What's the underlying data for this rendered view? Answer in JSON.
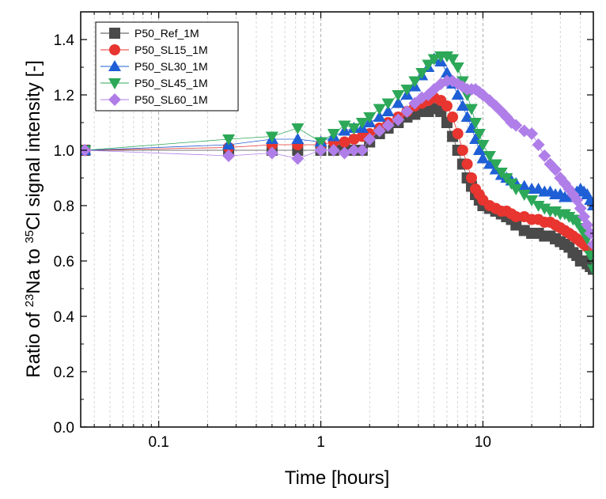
{
  "chart_data": {
    "type": "scatter",
    "xscale": "log",
    "xlabel": "Time [hours]",
    "ylabel_parts": [
      "Ratio of ",
      "23",
      "Na to ",
      "35",
      "Cl signal intensity [-]"
    ],
    "xlim": [
      0.033,
      48
    ],
    "ylim": [
      0,
      1.5
    ],
    "xticks": [
      0.1,
      1,
      10
    ],
    "xtick_labels": [
      "0.1",
      "1",
      "10"
    ],
    "yticks": [
      0.0,
      0.2,
      0.4,
      0.6,
      0.8,
      1.0,
      1.2,
      1.4
    ],
    "ytick_labels": [
      "0.0",
      "0.2",
      "0.4",
      "0.6",
      "0.8",
      "1.0",
      "1.2",
      "1.4"
    ],
    "grid": "vertical-minor-dashed",
    "legend_position": "top-left",
    "series": [
      {
        "name": "P50_Ref_1M",
        "color": "#4a4a4a",
        "marker": "square",
        "x": [
          0.035,
          0.27,
          0.5,
          0.72,
          1.0,
          1.2,
          1.4,
          1.6,
          1.8,
          2.0,
          2.3,
          2.6,
          3.0,
          3.4,
          3.8,
          4.2,
          4.6,
          5.0,
          5.5,
          6.0,
          6.5,
          7.0,
          7.5,
          8.0,
          8.5,
          9.0,
          9.5,
          10,
          11,
          12,
          13,
          14,
          15,
          16,
          18,
          20,
          22,
          24,
          26,
          28,
          30,
          32,
          34,
          36,
          38,
          40,
          42,
          44,
          46,
          48
        ],
        "y": [
          1.0,
          1.0,
          1.0,
          1.0,
          1.0,
          1.0,
          1.01,
          1.0,
          1.0,
          1.03,
          1.06,
          1.08,
          1.1,
          1.12,
          1.13,
          1.14,
          1.14,
          1.15,
          1.14,
          1.1,
          1.05,
          1.0,
          0.95,
          0.9,
          0.87,
          0.84,
          0.82,
          0.8,
          0.79,
          0.78,
          0.77,
          0.76,
          0.75,
          0.73,
          0.71,
          0.7,
          0.7,
          0.69,
          0.69,
          0.68,
          0.67,
          0.66,
          0.65,
          0.63,
          0.62,
          0.6,
          0.6,
          0.59,
          0.58,
          0.57
        ]
      },
      {
        "name": "P50_SL15_1M",
        "color": "#e8352f",
        "marker": "circle",
        "x": [
          0.035,
          0.27,
          0.5,
          0.72,
          1.0,
          1.2,
          1.4,
          1.6,
          1.8,
          2.0,
          2.3,
          2.6,
          3.0,
          3.4,
          3.8,
          4.2,
          4.6,
          5.0,
          5.5,
          6.0,
          6.5,
          7.0,
          7.5,
          8.0,
          8.5,
          9.0,
          9.5,
          10,
          11,
          12,
          13,
          14,
          15,
          16,
          18,
          20,
          22,
          24,
          26,
          28,
          30,
          32,
          34,
          36,
          38,
          40,
          42,
          44,
          46,
          48
        ],
        "y": [
          1.0,
          1.01,
          1.02,
          1.02,
          1.02,
          1.03,
          1.03,
          1.04,
          1.05,
          1.06,
          1.08,
          1.1,
          1.12,
          1.14,
          1.16,
          1.17,
          1.18,
          1.19,
          1.18,
          1.16,
          1.12,
          1.06,
          1.0,
          0.95,
          0.9,
          0.86,
          0.84,
          0.82,
          0.8,
          0.79,
          0.78,
          0.78,
          0.77,
          0.76,
          0.76,
          0.75,
          0.75,
          0.74,
          0.74,
          0.73,
          0.72,
          0.71,
          0.7,
          0.69,
          0.68,
          0.67,
          0.66,
          0.65,
          0.64,
          0.64
        ]
      },
      {
        "name": "P50_SL30_1M",
        "color": "#1f5fd6",
        "marker": "triangle-up",
        "x": [
          0.035,
          0.27,
          0.5,
          0.72,
          1.0,
          1.2,
          1.4,
          1.6,
          1.8,
          2.0,
          2.3,
          2.6,
          3.0,
          3.4,
          3.8,
          4.2,
          4.6,
          5.0,
          5.5,
          6.0,
          6.5,
          7.0,
          7.5,
          8.0,
          8.5,
          9.0,
          9.5,
          10,
          11,
          12,
          13,
          14,
          15,
          16,
          18,
          20,
          22,
          24,
          26,
          28,
          30,
          32,
          34,
          36,
          38,
          40,
          42,
          44,
          46,
          48
        ],
        "y": [
          1.0,
          1.02,
          1.04,
          1.04,
          1.03,
          1.05,
          1.07,
          1.08,
          1.08,
          1.1,
          1.12,
          1.14,
          1.17,
          1.2,
          1.23,
          1.27,
          1.3,
          1.33,
          1.32,
          1.28,
          1.24,
          1.2,
          1.16,
          1.12,
          1.08,
          1.04,
          1.0,
          0.97,
          0.95,
          0.93,
          0.91,
          0.9,
          0.89,
          0.88,
          0.87,
          0.86,
          0.86,
          0.85,
          0.85,
          0.84,
          0.84,
          0.83,
          0.83,
          0.84,
          0.85,
          0.86,
          0.85,
          0.84,
          0.82,
          0.8
        ]
      },
      {
        "name": "P50_SL45_1M",
        "color": "#2ca858",
        "marker": "triangle-down",
        "x": [
          0.035,
          0.27,
          0.5,
          0.72,
          1.0,
          1.2,
          1.4,
          1.6,
          1.8,
          2.0,
          2.3,
          2.6,
          3.0,
          3.4,
          3.8,
          4.2,
          4.6,
          5.0,
          5.5,
          6.0,
          6.5,
          7.0,
          7.5,
          8.0,
          8.5,
          9.0,
          9.5,
          10,
          11,
          12,
          13,
          14,
          15,
          16,
          18,
          20,
          22,
          24,
          26,
          28,
          30,
          32,
          34,
          36,
          38,
          40,
          42,
          44,
          46,
          48
        ],
        "y": [
          1.0,
          1.04,
          1.05,
          1.08,
          1.03,
          1.06,
          1.09,
          1.08,
          1.1,
          1.12,
          1.15,
          1.17,
          1.2,
          1.22,
          1.25,
          1.28,
          1.31,
          1.33,
          1.34,
          1.34,
          1.33,
          1.3,
          1.25,
          1.2,
          1.15,
          1.1,
          1.06,
          1.02,
          0.98,
          0.95,
          0.92,
          0.9,
          0.88,
          0.86,
          0.84,
          0.82,
          0.8,
          0.79,
          0.78,
          0.78,
          0.77,
          0.77,
          0.76,
          0.75,
          0.74,
          0.72,
          0.7,
          0.68,
          0.62,
          0.57
        ]
      },
      {
        "name": "P50_SL60_1M",
        "color": "#b07ee8",
        "marker": "diamond",
        "x": [
          0.035,
          0.27,
          0.5,
          0.72,
          1.0,
          1.2,
          1.4,
          1.6,
          1.8,
          2.0,
          2.3,
          2.6,
          3.0,
          3.4,
          3.8,
          4.2,
          4.6,
          5.0,
          5.5,
          6.0,
          6.5,
          7.0,
          7.5,
          8.0,
          8.5,
          9.0,
          9.5,
          10,
          11,
          12,
          13,
          14,
          15,
          16,
          18,
          20,
          22,
          24,
          26,
          28,
          30,
          32,
          34,
          36,
          38,
          40,
          42,
          44,
          46,
          48
        ],
        "y": [
          1.0,
          0.98,
          0.99,
          0.97,
          1.0,
          1.0,
          0.99,
          1.0,
          1.0,
          1.04,
          1.07,
          1.09,
          1.11,
          1.14,
          1.17,
          1.19,
          1.2,
          1.22,
          1.24,
          1.25,
          1.25,
          1.24,
          1.23,
          1.22,
          1.22,
          1.22,
          1.21,
          1.2,
          1.18,
          1.16,
          1.14,
          1.12,
          1.1,
          1.09,
          1.07,
          1.06,
          1.02,
          0.98,
          0.95,
          0.93,
          0.9,
          0.88,
          0.86,
          0.84,
          0.82,
          0.79,
          0.76,
          0.73,
          0.7,
          0.66
        ]
      }
    ]
  }
}
